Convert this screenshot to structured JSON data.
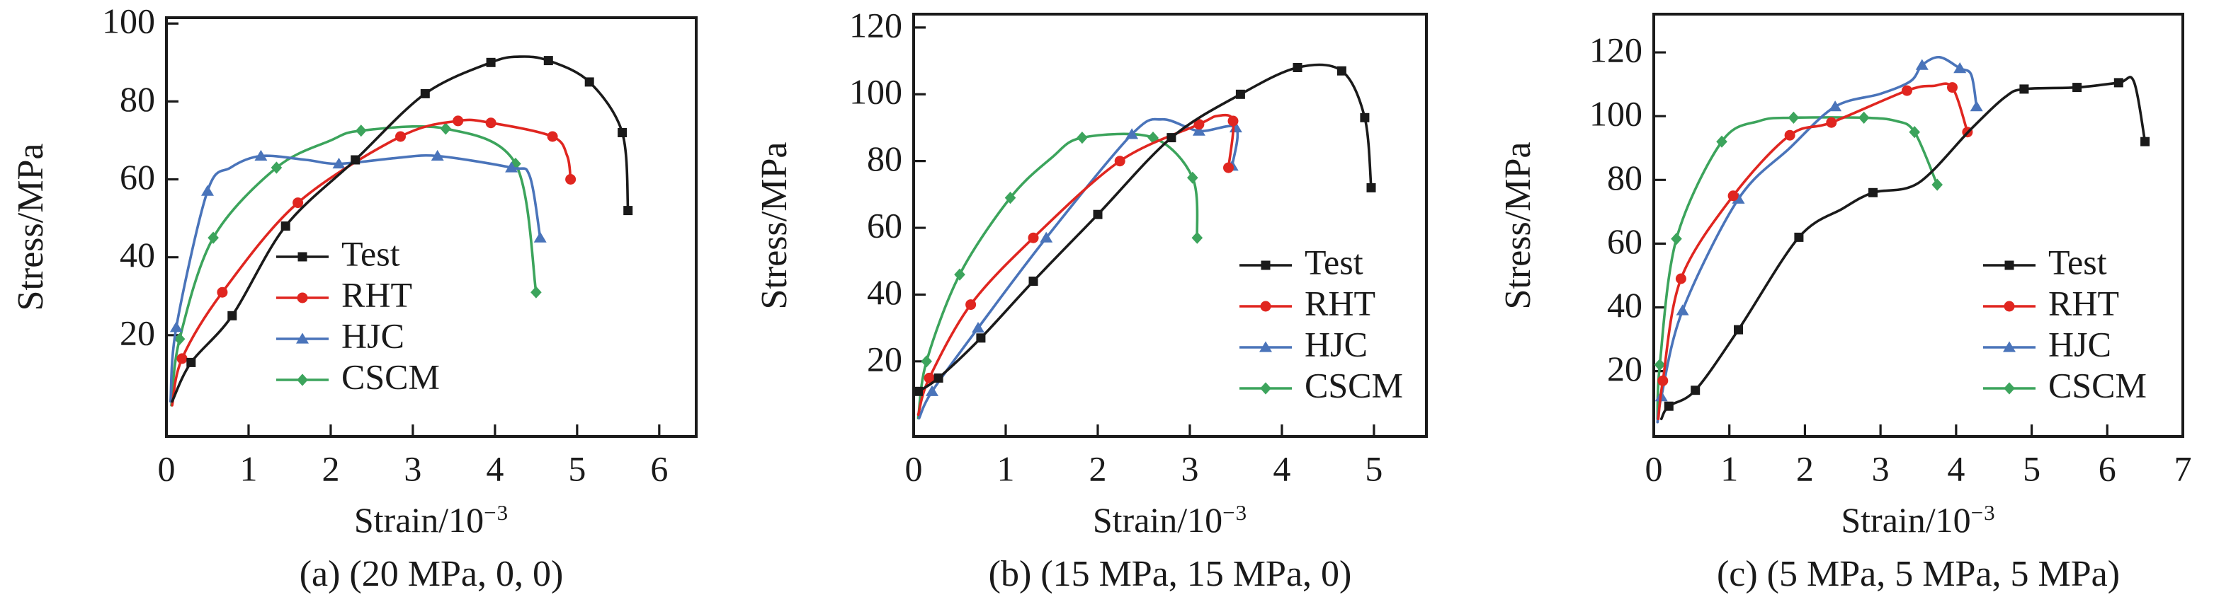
{
  "page": {
    "background": "#ffffff",
    "text_color": "#1a1a1a",
    "description": "Three-panel stress-strain curve comparison of test data vs RHT, HJC and CSCM material models under different confinement"
  },
  "chart_data": [
    {
      "type": "line",
      "caption": "(a) (20 MPa, 0, 0)",
      "xlabel_base": "Strain/10",
      "xlabel_sup": "−3",
      "ylabel": "Stress/MPa",
      "xlim": [
        0,
        6.45
      ],
      "ylim": [
        -6,
        101.5
      ],
      "xticks": [
        "0",
        "1",
        "2",
        "3",
        "4",
        "5",
        "6"
      ],
      "yticks": [
        "20",
        "40",
        "60",
        "80",
        "100"
      ],
      "grid": false,
      "legend_position": "inside lower-left-of-center",
      "series": [
        {
          "name": "Test",
          "color": "#1a1a1a",
          "marker": "square",
          "points": [
            [
              0.07,
              3,
              0
            ],
            [
              0.3,
              13,
              1
            ],
            [
              0.8,
              25,
              1
            ],
            [
              1.45,
              48,
              1
            ],
            [
              2.3,
              65,
              1
            ],
            [
              3.15,
              82,
              1
            ],
            [
              3.95,
              90,
              1
            ],
            [
              4.3,
              91.5,
              0
            ],
            [
              4.65,
              90.5,
              1
            ],
            [
              5.15,
              85,
              1
            ],
            [
              5.55,
              72,
              1
            ],
            [
              5.62,
              52,
              1
            ]
          ]
        },
        {
          "name": "RHT",
          "color": "#e02620",
          "marker": "circle",
          "points": [
            [
              0.07,
              2,
              0
            ],
            [
              0.19,
              14,
              1
            ],
            [
              0.68,
              31,
              1
            ],
            [
              1.6,
              54,
              1
            ],
            [
              2.85,
              71,
              1
            ],
            [
              3.55,
              75,
              1
            ],
            [
              3.95,
              74.5,
              1
            ],
            [
              4.7,
              71,
              1
            ],
            [
              4.88,
              66,
              0
            ],
            [
              4.92,
              60,
              1
            ]
          ]
        },
        {
          "name": "HJC",
          "color": "#4a74ba",
          "marker": "triangle",
          "points": [
            [
              0.05,
              3,
              0
            ],
            [
              0.12,
              22,
              1
            ],
            [
              0.5,
              57,
              1
            ],
            [
              0.78,
              63,
              0
            ],
            [
              1.15,
              66,
              1
            ],
            [
              1.7,
              65,
              0
            ],
            [
              2.1,
              64,
              1
            ],
            [
              2.8,
              65.5,
              0
            ],
            [
              3.3,
              66,
              1
            ],
            [
              4.2,
              63,
              1
            ],
            [
              4.42,
              61,
              0
            ],
            [
              4.55,
              45,
              1
            ]
          ]
        },
        {
          "name": "CSCM",
          "color": "#3ca45c",
          "marker": "diamond",
          "points": [
            [
              0.06,
              2,
              0
            ],
            [
              0.16,
              19,
              1
            ],
            [
              0.57,
              45,
              1
            ],
            [
              1.34,
              63,
              1
            ],
            [
              2.0,
              70,
              0
            ],
            [
              2.37,
              72.5,
              1
            ],
            [
              3.4,
              73,
              1
            ],
            [
              4.25,
              64,
              1
            ],
            [
              4.5,
              31,
              1
            ]
          ]
        }
      ]
    },
    {
      "type": "line",
      "caption": "(b) (15 MPa, 15 MPa, 0)",
      "xlabel_base": "Strain/10",
      "xlabel_sup": "−3",
      "ylabel": "Stress/MPa",
      "xlim": [
        0,
        5.57
      ],
      "ylim": [
        -2.5,
        124
      ],
      "xticks": [
        "0",
        "1",
        "2",
        "3",
        "4",
        "5"
      ],
      "yticks": [
        "20",
        "40",
        "60",
        "80",
        "100",
        "120"
      ],
      "grid": false,
      "legend_position": "inside lower-right",
      "series": [
        {
          "name": "Test",
          "color": "#1a1a1a",
          "marker": "square",
          "points": [
            [
              0.05,
              11,
              1
            ],
            [
              0.27,
              15,
              1
            ],
            [
              0.73,
              27,
              1
            ],
            [
              1.3,
              44,
              1
            ],
            [
              2.0,
              64,
              1
            ],
            [
              2.8,
              87,
              1
            ],
            [
              3.55,
              100,
              1
            ],
            [
              4.17,
              108,
              1
            ],
            [
              4.65,
              107,
              1
            ],
            [
              4.9,
              93,
              1
            ],
            [
              4.97,
              72,
              1
            ]
          ]
        },
        {
          "name": "RHT",
          "color": "#e02620",
          "marker": "circle",
          "points": [
            [
              0.05,
              4,
              0
            ],
            [
              0.17,
              15,
              1
            ],
            [
              0.62,
              37,
              1
            ],
            [
              1.3,
              57,
              1
            ],
            [
              2.24,
              80,
              1
            ],
            [
              3.1,
              91,
              1
            ],
            [
              3.3,
              93.5,
              0
            ],
            [
              3.47,
              92,
              1
            ],
            [
              3.42,
              78,
              1
            ]
          ]
        },
        {
          "name": "HJC",
          "color": "#4a74ba",
          "marker": "triangle",
          "points": [
            [
              0.06,
              3,
              0
            ],
            [
              0.2,
              11,
              1
            ],
            [
              0.7,
              30,
              1
            ],
            [
              1.44,
              57,
              1
            ],
            [
              2.37,
              88,
              1
            ],
            [
              2.7,
              92.5,
              0
            ],
            [
              3.1,
              89,
              1
            ],
            [
              3.5,
              90,
              1
            ],
            [
              3.46,
              78.5,
              1
            ]
          ]
        },
        {
          "name": "CSCM",
          "color": "#3ca45c",
          "marker": "diamond",
          "points": [
            [
              0.05,
              3,
              0
            ],
            [
              0.14,
              20,
              1
            ],
            [
              0.5,
              46,
              1
            ],
            [
              1.05,
              69,
              1
            ],
            [
              1.5,
              81,
              0
            ],
            [
              1.83,
              87,
              1
            ],
            [
              2.6,
              87,
              1
            ],
            [
              3.03,
              75,
              1
            ],
            [
              3.08,
              57,
              1
            ]
          ]
        }
      ]
    },
    {
      "type": "line",
      "caption": "(c) (5 MPa, 5 MPa, 5 MPa)",
      "xlabel_base": "Strain/10",
      "xlabel_sup": "−3",
      "ylabel": "Stress/MPa",
      "xlim": [
        0,
        7.0
      ],
      "ylim": [
        -0.5,
        132
      ],
      "xticks": [
        "0",
        "1",
        "2",
        "3",
        "4",
        "5",
        "6",
        "7"
      ],
      "yticks": [
        "20",
        "40",
        "60",
        "80",
        "100",
        "120"
      ],
      "grid": false,
      "legend_position": "inside lower-right",
      "series": [
        {
          "name": "Test",
          "color": "#1a1a1a",
          "marker": "square",
          "points": [
            [
              0.1,
              5,
              0
            ],
            [
              0.2,
              9,
              1
            ],
            [
              0.55,
              14,
              1
            ],
            [
              1.12,
              33,
              1
            ],
            [
              1.92,
              62,
              1
            ],
            [
              2.5,
              71,
              0
            ],
            [
              2.9,
              76,
              1
            ],
            [
              3.5,
              79,
              0
            ],
            [
              4.2,
              96,
              0
            ],
            [
              4.65,
              106,
              0
            ],
            [
              4.9,
              108.5,
              1
            ],
            [
              5.6,
              109,
              1
            ],
            [
              6.15,
              110.5,
              1
            ],
            [
              6.35,
              111,
              0
            ],
            [
              6.5,
              92,
              1
            ]
          ]
        },
        {
          "name": "RHT",
          "color": "#e02620",
          "marker": "circle",
          "points": [
            [
              0.06,
              5,
              0
            ],
            [
              0.12,
              17,
              1
            ],
            [
              0.36,
              49,
              1
            ],
            [
              1.05,
              75,
              1
            ],
            [
              1.8,
              94,
              1
            ],
            [
              2.35,
              98,
              1
            ],
            [
              3.35,
              108,
              1
            ],
            [
              3.7,
              109.5,
              0
            ],
            [
              3.95,
              109,
              1
            ],
            [
              4.15,
              95,
              1
            ]
          ]
        },
        {
          "name": "HJC",
          "color": "#4a74ba",
          "marker": "triangle",
          "points": [
            [
              0.05,
              4,
              0
            ],
            [
              0.1,
              12,
              1
            ],
            [
              0.38,
              39,
              1
            ],
            [
              1.12,
              74,
              1
            ],
            [
              1.8,
              90,
              0
            ],
            [
              2.4,
              103,
              1
            ],
            [
              3.0,
              107,
              0
            ],
            [
              3.4,
              111,
              0
            ],
            [
              3.55,
              116,
              1
            ],
            [
              3.78,
              118.5,
              0
            ],
            [
              4.05,
              115,
              1
            ],
            [
              4.2,
              113,
              0
            ],
            [
              4.27,
              103,
              1
            ]
          ]
        },
        {
          "name": "CSCM",
          "color": "#3ca45c",
          "marker": "diamond",
          "points": [
            [
              0.05,
              5,
              0
            ],
            [
              0.08,
              22,
              1
            ],
            [
              0.3,
              61.5,
              1
            ],
            [
              0.9,
              92,
              1
            ],
            [
              1.4,
              98.5,
              0
            ],
            [
              1.85,
              99.5,
              1
            ],
            [
              2.78,
              99.5,
              1
            ],
            [
              3.2,
              98.5,
              0
            ],
            [
              3.45,
              95,
              1
            ],
            [
              3.75,
              78.5,
              1
            ]
          ]
        }
      ]
    }
  ]
}
